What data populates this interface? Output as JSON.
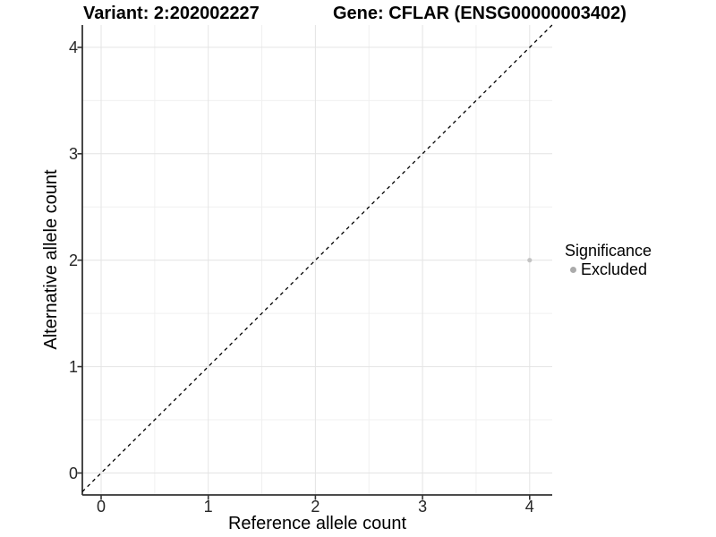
{
  "header": {
    "title_left": "Variant: 2:202002227",
    "title_right": "Gene: CFLAR (ENSG00000003402)"
  },
  "chart_data": {
    "type": "scatter",
    "xlabel": "Reference allele count",
    "ylabel": "Alternative allele count",
    "x_ticks": [
      0,
      1,
      2,
      3,
      4
    ],
    "y_ticks": [
      0,
      1,
      2,
      3,
      4
    ],
    "x_minor_ticks": [
      0.5,
      1.5,
      2.5,
      3.5
    ],
    "y_minor_ticks": [
      0.5,
      1.5,
      2.5,
      3.5
    ],
    "xlim": [
      -0.18,
      4.21
    ],
    "ylim": [
      -0.21,
      4.21
    ],
    "grid": true,
    "reference_line": {
      "type": "identity",
      "style": "dashed",
      "color": "#000000"
    },
    "series": [
      {
        "name": "Excluded",
        "color": "#c3c3c3",
        "points": [
          {
            "x": 4,
            "y": 2
          }
        ]
      }
    ],
    "legend": {
      "title": "Significance",
      "position": "right",
      "entries": [
        {
          "label": "Excluded",
          "color": "#ababab",
          "icon": "point-icon"
        }
      ]
    },
    "style": {
      "major_grid_color": "#e4e4e4",
      "minor_grid_color": "#f0f0f0",
      "axis_line_color": "#333333",
      "tick_color": "#333333",
      "background": "#ffffff"
    }
  }
}
